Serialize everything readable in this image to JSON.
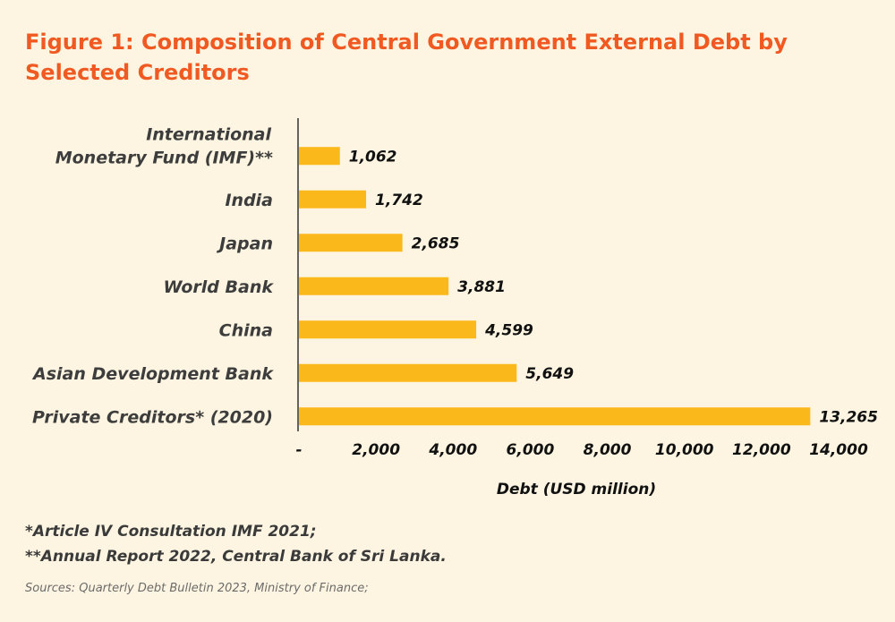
{
  "title": "Figure 1: Composition of Central Government External Debt by Selected Creditors",
  "chart_data": {
    "type": "bar",
    "orientation": "horizontal",
    "categories": [
      [
        "International",
        "Monetary Fund (IMF)**"
      ],
      [
        "India"
      ],
      [
        "Japan"
      ],
      [
        "World Bank"
      ],
      [
        "China"
      ],
      [
        "Asian Development Bank"
      ],
      [
        "Private Creditors* (2020)"
      ]
    ],
    "values": [
      1062,
      1742,
      2685,
      3881,
      4599,
      5649,
      13265
    ],
    "value_labels": [
      "1,062",
      "1,742",
      "2,685",
      "3,881",
      "4,599",
      "5,649",
      "13,265"
    ],
    "xlim": [
      0,
      14000
    ],
    "ticks": [
      0,
      2000,
      4000,
      6000,
      8000,
      10000,
      12000,
      14000
    ],
    "tick_labels": [
      "-",
      "2,000",
      "4,000",
      "6,000",
      "8,000",
      "10,000",
      "12,000",
      "14,000"
    ],
    "xlabel": "Debt (USD million)",
    "ylabel": "",
    "grid": false,
    "bar_color": "#fbb81b"
  },
  "notes": [
    "*Article IV Consultation IMF 2021;",
    "**Annual Report 2022, Central Bank of Sri Lanka."
  ],
  "source": "Sources: Quarterly Debt Bulletin 2023, Ministry of Finance;",
  "colors": {
    "background": "#fdf5e1",
    "title": "#f05a22",
    "bar": "#fbb81b"
  }
}
